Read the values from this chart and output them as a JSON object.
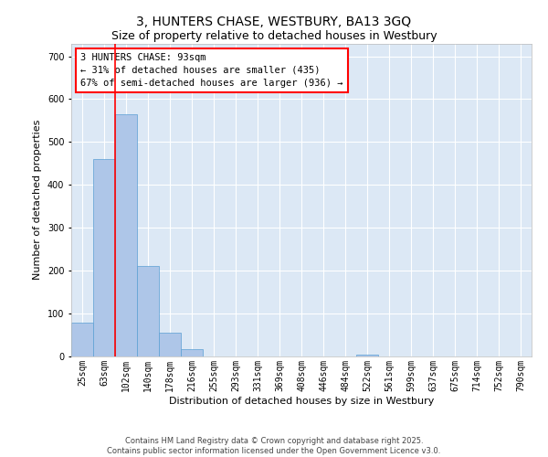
{
  "title_line1": "3, HUNTERS CHASE, WESTBURY, BA13 3GQ",
  "title_line2": "Size of property relative to detached houses in Westbury",
  "xlabel": "Distribution of detached houses by size in Westbury",
  "ylabel": "Number of detached properties",
  "categories": [
    "25sqm",
    "63sqm",
    "102sqm",
    "140sqm",
    "178sqm",
    "216sqm",
    "255sqm",
    "293sqm",
    "331sqm",
    "369sqm",
    "408sqm",
    "446sqm",
    "484sqm",
    "522sqm",
    "561sqm",
    "599sqm",
    "637sqm",
    "675sqm",
    "714sqm",
    "752sqm",
    "790sqm"
  ],
  "values": [
    78,
    460,
    565,
    210,
    55,
    18,
    0,
    0,
    0,
    0,
    0,
    0,
    0,
    4,
    0,
    0,
    0,
    0,
    0,
    0,
    0
  ],
  "bar_color": "#aec6e8",
  "bar_edge_color": "#5a9fd4",
  "red_line_x": 1.5,
  "annotation_text": "3 HUNTERS CHASE: 93sqm\n← 31% of detached houses are smaller (435)\n67% of semi-detached houses are larger (936) →",
  "annotation_box_color": "white",
  "annotation_box_edge_color": "red",
  "annotation_fontsize": 7.5,
  "ylim": [
    0,
    730
  ],
  "yticks": [
    0,
    100,
    200,
    300,
    400,
    500,
    600,
    700
  ],
  "background_color": "#dce8f5",
  "grid_color": "white",
  "footer_text": "Contains HM Land Registry data © Crown copyright and database right 2025.\nContains public sector information licensed under the Open Government Licence v3.0.",
  "title_fontsize": 10,
  "subtitle_fontsize": 9,
  "xlabel_fontsize": 8,
  "ylabel_fontsize": 8,
  "tick_fontsize": 7
}
